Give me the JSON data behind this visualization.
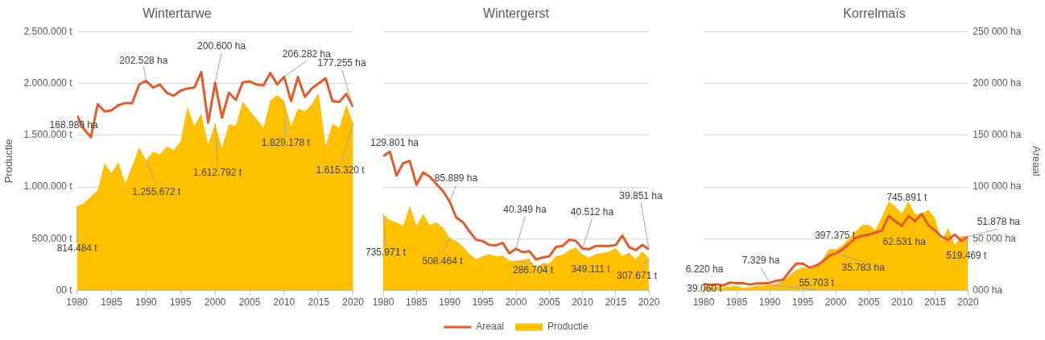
{
  "chart_data": [
    {
      "type": "area",
      "title": "Wintertarwe",
      "ylabel": "Productie",
      "x": [
        1980,
        1981,
        1982,
        1983,
        1984,
        1985,
        1986,
        1987,
        1988,
        1989,
        1990,
        1991,
        1992,
        1993,
        1994,
        1995,
        1996,
        1997,
        1998,
        1999,
        2000,
        2001,
        2002,
        2003,
        2004,
        2005,
        2006,
        2007,
        2008,
        2009,
        2010,
        2011,
        2012,
        2013,
        2014,
        2015,
        2016,
        2017,
        2018,
        2019,
        2020
      ],
      "series": [
        {
          "type": "area",
          "color": "#ffc000",
          "values": [
            814484,
            842000,
            908000,
            969000,
            1229000,
            1132000,
            1240000,
            1032000,
            1205000,
            1382000,
            1255672,
            1340000,
            1316000,
            1392000,
            1356000,
            1440000,
            1777000,
            1587000,
            1711000,
            1408000,
            1612792,
            1377000,
            1606000,
            1592000,
            1824000,
            1737000,
            1658000,
            1571000,
            1835000,
            1887000,
            1829178,
            1585000,
            1756000,
            1729000,
            1798000,
            1908000,
            1395000,
            1611000,
            1571000,
            1795000,
            1615320
          ],
          "value_labels": [
            "814.484 t",
            null,
            null,
            null,
            null,
            null,
            null,
            null,
            null,
            null,
            "1.255.672 t",
            null,
            null,
            null,
            null,
            null,
            null,
            null,
            null,
            null,
            "1.612.792 t",
            null,
            null,
            null,
            null,
            null,
            null,
            null,
            null,
            null,
            "1.829.178 t",
            null,
            null,
            null,
            null,
            null,
            null,
            null,
            null,
            null,
            "1.615.320 t"
          ]
        },
        {
          "type": "line",
          "axis": "y2",
          "color": "#e35a2b",
          "values": [
            168980,
            156000,
            148000,
            180000,
            173000,
            174000,
            179000,
            181000,
            181000,
            199000,
            202528,
            196000,
            199000,
            191000,
            188000,
            193000,
            195000,
            196000,
            211000,
            162000,
            200600,
            167000,
            191000,
            184000,
            201000,
            202000,
            199000,
            198000,
            210000,
            199000,
            206282,
            183000,
            206000,
            187000,
            195000,
            200000,
            205000,
            183000,
            182000,
            190000,
            177255
          ],
          "value_labels": [
            "168.980 ha",
            null,
            null,
            null,
            null,
            null,
            null,
            null,
            null,
            null,
            "202.528 ha",
            null,
            null,
            null,
            null,
            null,
            null,
            null,
            null,
            null,
            "200.600 ha",
            null,
            null,
            null,
            null,
            null,
            null,
            null,
            null,
            null,
            "206.282 ha",
            null,
            null,
            null,
            null,
            null,
            null,
            null,
            null,
            null,
            "177.255 ha"
          ]
        }
      ],
      "xlim": [
        1980,
        2020
      ],
      "xticks": [
        1980,
        1985,
        1990,
        1995,
        2000,
        2005,
        2010,
        2015,
        2020
      ],
      "ylim": [
        0,
        2500000
      ],
      "yticks": [
        {
          "value": 0,
          "label": "00 t"
        },
        {
          "value": 500000,
          "label": "500.000 t"
        },
        {
          "value": 1000000,
          "label": "1.000.000 t"
        },
        {
          "value": 1500000,
          "label": "1.500.000 t"
        },
        {
          "value": 2000000,
          "label": "2.000.000 t"
        },
        {
          "value": 2500000,
          "label": "2.500.000 t"
        }
      ],
      "y2lim": [
        0,
        250000
      ],
      "tick_labels": [
        "x",
        "y"
      ],
      "grid": "y",
      "legend": false
    },
    {
      "type": "area",
      "title": "Wintergerst",
      "x": [
        1980,
        1981,
        1982,
        1983,
        1984,
        1985,
        1986,
        1987,
        1988,
        1989,
        1990,
        1991,
        1992,
        1993,
        1994,
        1995,
        1996,
        1997,
        1998,
        1999,
        2000,
        2001,
        2002,
        2003,
        2004,
        2005,
        2006,
        2007,
        2008,
        2009,
        2010,
        2011,
        2012,
        2013,
        2014,
        2015,
        2016,
        2017,
        2018,
        2019,
        2020
      ],
      "series": [
        {
          "name": "Productie",
          "type": "area",
          "color": "#ffc000",
          "values": [
            735971,
            679000,
            658000,
            624000,
            819000,
            624000,
            737000,
            632000,
            658000,
            608000,
            508464,
            476000,
            424000,
            350000,
            305000,
            332000,
            350000,
            332000,
            337000,
            287000,
            286704,
            297000,
            308000,
            213000,
            266000,
            261000,
            332000,
            345000,
            390000,
            416000,
            349111,
            318000,
            350000,
            363000,
            376000,
            411000,
            334000,
            368000,
            303000,
            382000,
            307671
          ],
          "value_labels": [
            "735.971 t",
            null,
            null,
            null,
            null,
            null,
            null,
            null,
            null,
            null,
            "508.464 t",
            null,
            null,
            null,
            null,
            null,
            null,
            null,
            null,
            null,
            "286.704 t",
            null,
            null,
            null,
            null,
            null,
            null,
            null,
            null,
            null,
            "349.111 t",
            null,
            null,
            null,
            null,
            null,
            null,
            null,
            null,
            null,
            "307.671 t"
          ]
        },
        {
          "name": "Areaal",
          "type": "line",
          "axis": "y2",
          "color": "#e35a2b",
          "values": [
            129801,
            134000,
            111000,
            123000,
            125000,
            102000,
            114000,
            110000,
            103000,
            96000,
            85889,
            70500,
            66000,
            57000,
            49000,
            47600,
            44000,
            43700,
            46000,
            36000,
            40349,
            37000,
            38000,
            30000,
            32000,
            33000,
            42000,
            43000,
            49000,
            48000,
            40512,
            40000,
            43000,
            43000,
            43000,
            44000,
            53000,
            42000,
            39000,
            44000,
            39851
          ],
          "value_labels": [
            "129.801 ha",
            null,
            null,
            null,
            null,
            null,
            null,
            null,
            null,
            null,
            "85.889 ha",
            null,
            null,
            null,
            null,
            null,
            null,
            null,
            null,
            null,
            "40.349 ha",
            null,
            null,
            null,
            null,
            null,
            null,
            null,
            null,
            null,
            "40.512 ha",
            null,
            null,
            null,
            null,
            null,
            null,
            null,
            null,
            null,
            "39.851 ha"
          ]
        }
      ],
      "xlim": [
        1980,
        2020
      ],
      "xticks": [
        1980,
        1985,
        1990,
        1995,
        2000,
        2005,
        2010,
        2015,
        2020
      ],
      "ylim": [
        0,
        2500000
      ],
      "yticks": [
        {
          "value": 0,
          "label": null
        },
        {
          "value": 500000,
          "label": null
        },
        {
          "value": 1000000,
          "label": null
        },
        {
          "value": 1500000,
          "label": null
        },
        {
          "value": 2000000,
          "label": null
        },
        {
          "value": 2500000,
          "label": null
        }
      ],
      "y2lim": [
        0,
        250000
      ],
      "tick_labels": [
        "x"
      ],
      "grid": "y",
      "legend": "bottom"
    },
    {
      "type": "area",
      "title": "Korrelmaïs",
      "y2label": "Areaal",
      "x": [
        1980,
        1981,
        1982,
        1983,
        1984,
        1985,
        1986,
        1987,
        1988,
        1989,
        1990,
        1991,
        1992,
        1993,
        1994,
        1995,
        1996,
        1997,
        1998,
        1999,
        2000,
        2001,
        2002,
        2003,
        2004,
        2005,
        2006,
        2007,
        2008,
        2009,
        2010,
        2011,
        2012,
        2013,
        2014,
        2015,
        2016,
        2017,
        2018,
        2019,
        2020
      ],
      "series": [
        {
          "type": "area",
          "color": "#ffc000",
          "values": [
            39060,
            32000,
            34000,
            32000,
            40000,
            45000,
            26000,
            34000,
            45000,
            48000,
            55703,
            66000,
            93000,
            145000,
            198000,
            225000,
            206000,
            233000,
            304000,
            402000,
            397375,
            436000,
            503000,
            569000,
            635000,
            635000,
            582000,
            714000,
            860000,
            812000,
            745891,
            860000,
            735000,
            746000,
            780000,
            701000,
            476000,
            608000,
            436000,
            529000,
            519469
          ],
          "value_labels": [
            "39.060 t",
            null,
            null,
            null,
            null,
            null,
            null,
            null,
            null,
            null,
            "55.703 t",
            null,
            null,
            null,
            null,
            null,
            null,
            null,
            null,
            null,
            "397.375 t",
            null,
            null,
            null,
            null,
            null,
            null,
            null,
            null,
            null,
            "745.891 t",
            null,
            null,
            null,
            null,
            null,
            null,
            null,
            null,
            null,
            "519.469 t"
          ]
        },
        {
          "type": "line",
          "axis": "y2",
          "color": "#e35a2b",
          "values": [
            6220,
            5500,
            6000,
            5000,
            7700,
            7000,
            7000,
            5800,
            6900,
            6900,
            7329,
            9500,
            10300,
            18500,
            26000,
            26000,
            22000,
            24000,
            28000,
            33600,
            35783,
            39700,
            45000,
            50800,
            53000,
            54000,
            56000,
            58000,
            72000,
            67000,
            62531,
            72000,
            67000,
            74000,
            63000,
            58000,
            52000,
            49000,
            54000,
            48000,
            51878
          ],
          "value_labels": [
            "6.220 ha",
            null,
            null,
            null,
            null,
            null,
            null,
            null,
            null,
            null,
            "7.329 ha",
            null,
            null,
            null,
            null,
            null,
            null,
            null,
            null,
            null,
            "35.783 ha",
            null,
            null,
            null,
            null,
            null,
            null,
            null,
            null,
            null,
            "62.531 ha",
            null,
            null,
            null,
            null,
            null,
            null,
            null,
            null,
            null,
            "51.878 ha"
          ]
        }
      ],
      "xlim": [
        1980,
        2020
      ],
      "xticks": [
        1980,
        1985,
        1990,
        1995,
        2000,
        2005,
        2010,
        2015,
        2020
      ],
      "ylim": [
        0,
        2500000
      ],
      "y2lim": [
        0,
        250000
      ],
      "y2ticks": [
        {
          "value": 0,
          "label": "000 ha"
        },
        {
          "value": 50000,
          "label": "50 000 ha"
        },
        {
          "value": 100000,
          "label": "100 000 ha"
        },
        {
          "value": 150000,
          "label": "150 000 ha"
        },
        {
          "value": 200000,
          "label": "200 000 ha"
        },
        {
          "value": 250000,
          "label": "250 000 ha"
        }
      ],
      "tick_labels": [
        "x",
        "y2"
      ],
      "grid": "y",
      "legend": false
    }
  ]
}
